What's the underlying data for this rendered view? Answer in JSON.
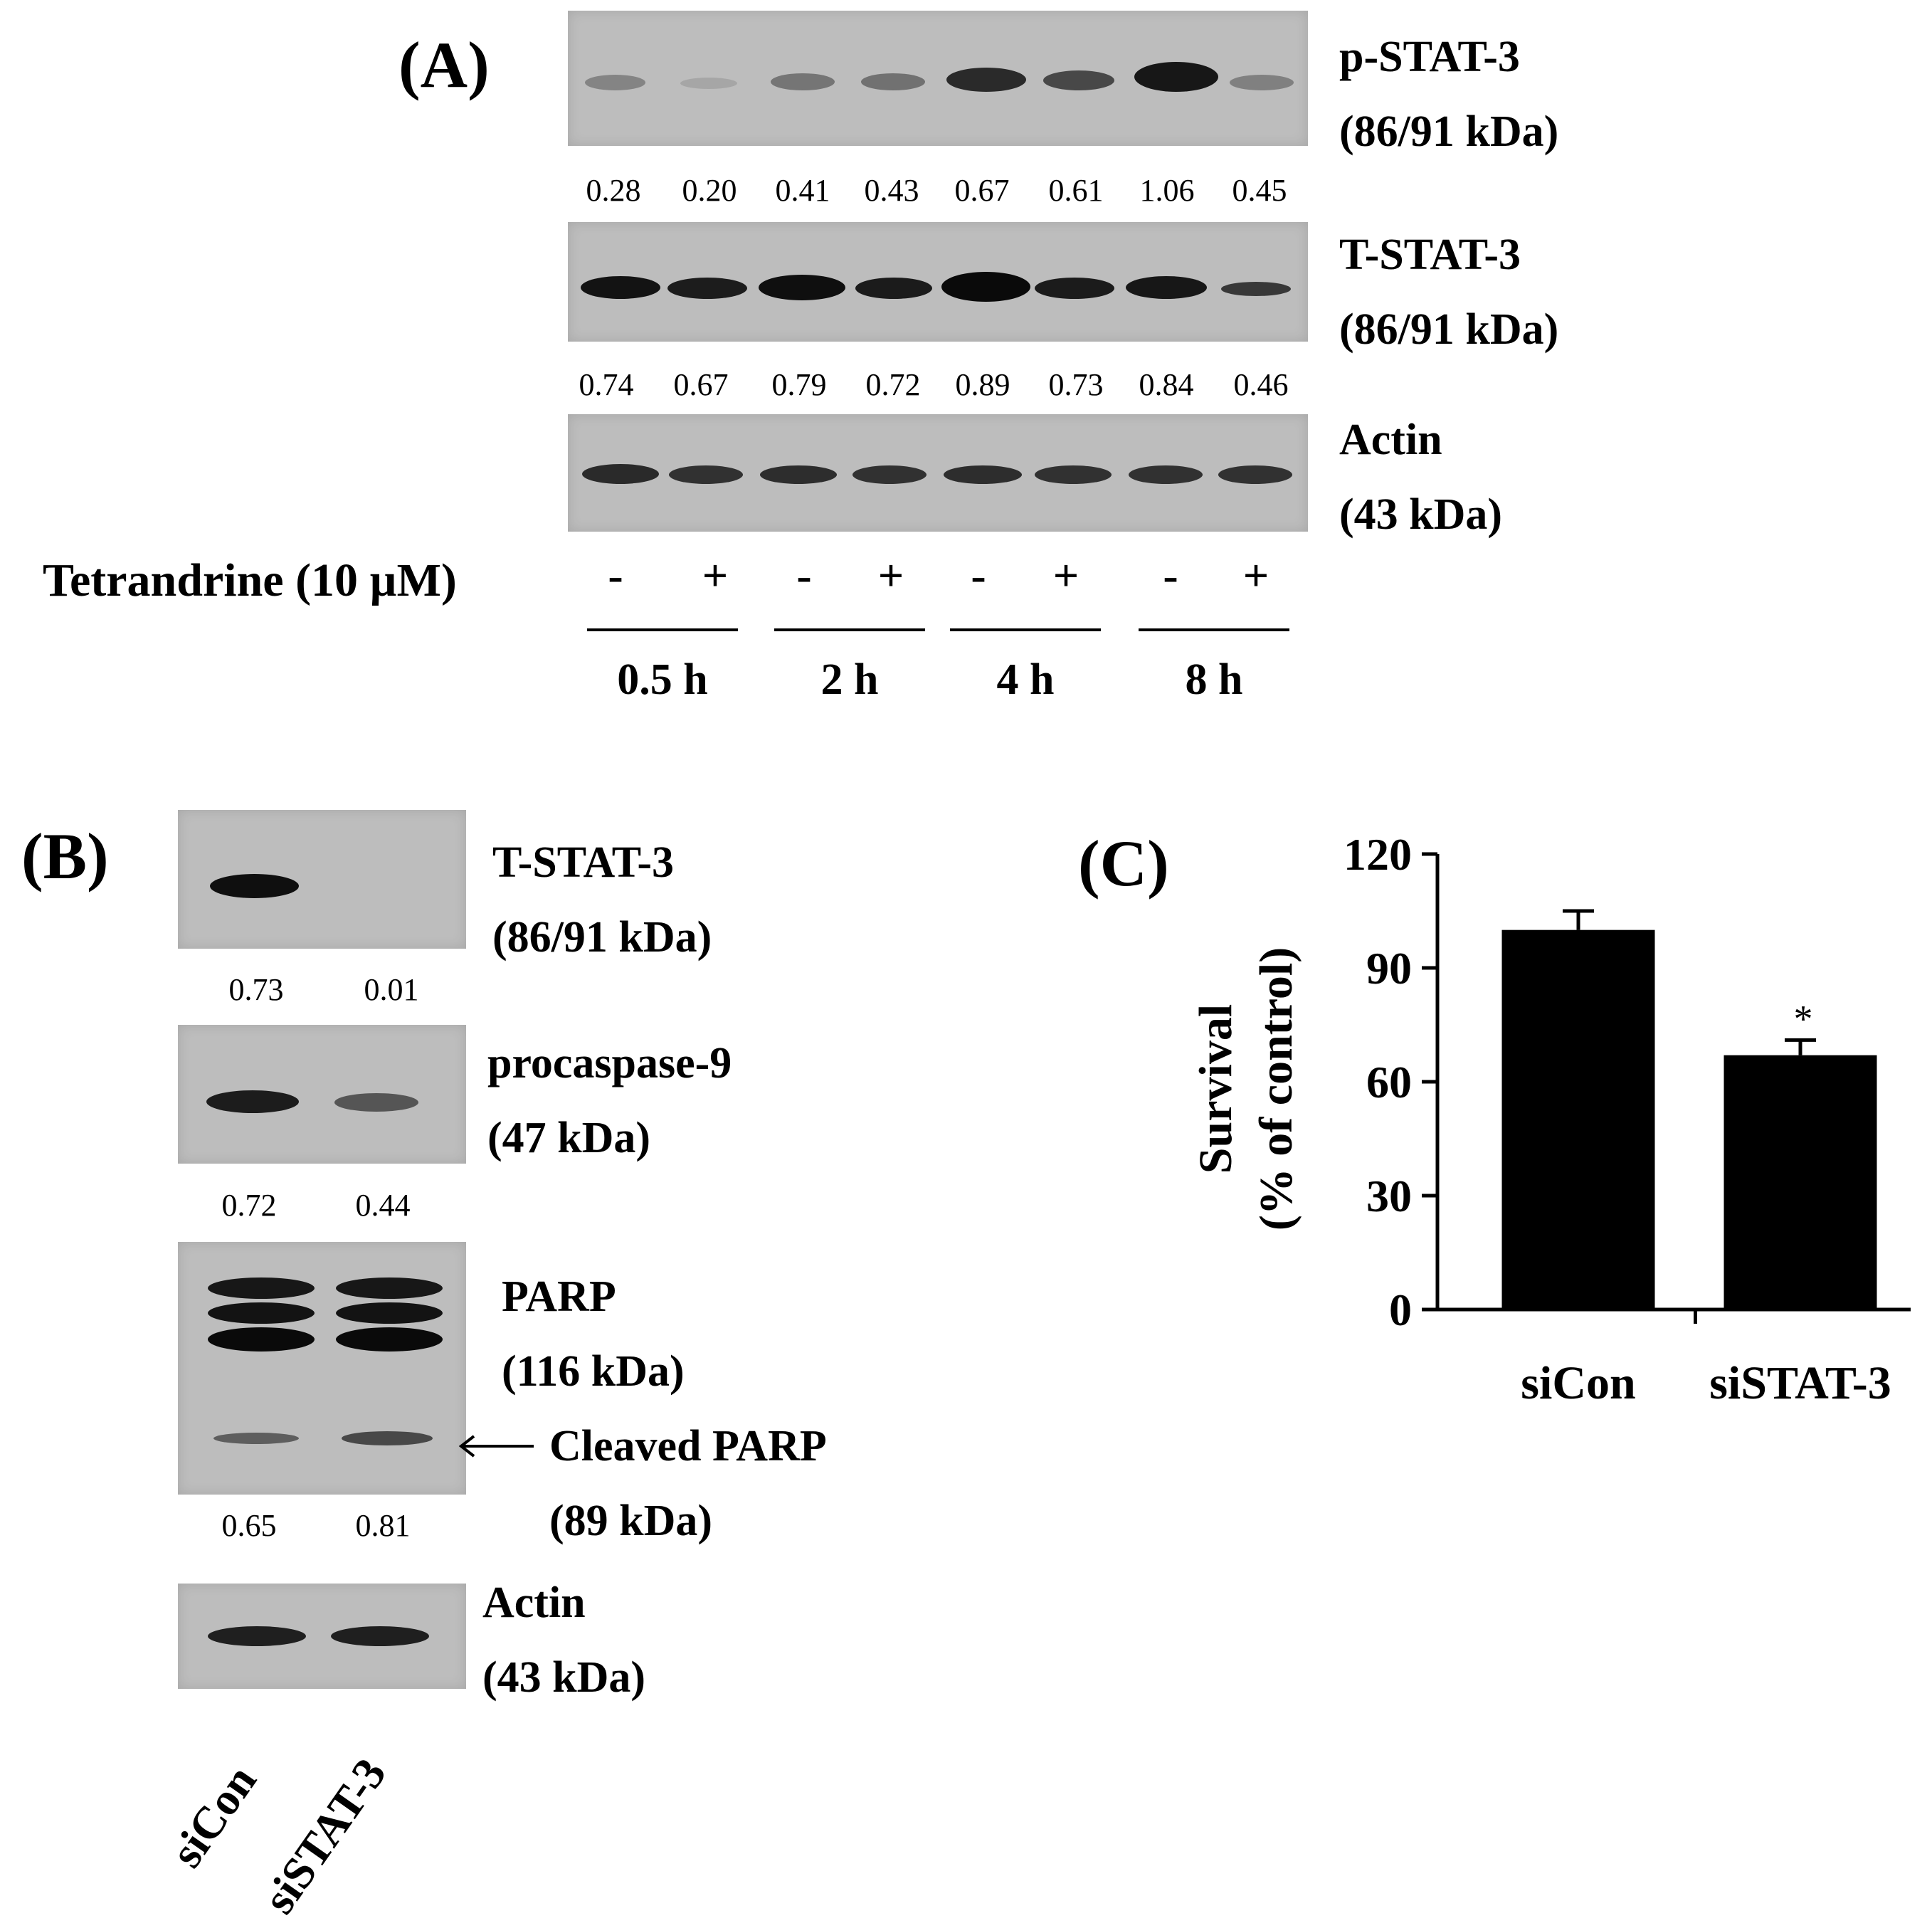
{
  "panel_a": {
    "letter": "(A)",
    "blots": [
      {
        "name": "p-STAT-3",
        "kda": "(86/91 kDa)",
        "quant": [
          "0.28",
          "0.20",
          "0.41",
          "0.43",
          "0.67",
          "0.61",
          "1.06",
          "0.45"
        ]
      },
      {
        "name": "T-STAT-3",
        "kda": "(86/91 kDa)",
        "quant": [
          "0.74",
          "0.67",
          "0.79",
          "0.72",
          "0.89",
          "0.73",
          "0.84",
          "0.46"
        ]
      },
      {
        "name": "Actin",
        "kda": "(43 kDa)"
      }
    ],
    "treatment_label": "Tetrandrine (10 µM)",
    "treatment_signs": [
      "-",
      "+",
      "-",
      "+",
      "-",
      "+",
      "-",
      "+"
    ],
    "time_points": [
      "0.5 h",
      "2 h",
      "4 h",
      "8 h"
    ]
  },
  "panel_b": {
    "letter": "(B)",
    "blots": [
      {
        "name": "T-STAT-3",
        "kda": "(86/91 kDa)",
        "quant": [
          "0.73",
          "0.01"
        ]
      },
      {
        "name": "procaspase-9",
        "kda": "(47 kDa)",
        "quant": [
          "0.72",
          "0.44"
        ]
      },
      {
        "name": "PARP",
        "kda": "(116 kDa)",
        "sub_name": "Cleaved PARP",
        "sub_kda": "(89 kDa)",
        "quant": [
          "0.65",
          "0.81"
        ]
      },
      {
        "name": "Actin",
        "kda": "(43 kDa)"
      }
    ],
    "lanes": [
      "siCon",
      "siSTAT-3"
    ]
  },
  "panel_c": {
    "letter": "(C)",
    "significance_marker": "*",
    "chart_data": {
      "type": "bar",
      "categories": [
        "siCon",
        "siSTAT-3"
      ],
      "values": [
        100,
        67
      ],
      "errors": [
        5,
        4
      ],
      "ylabel_line1": "Survival",
      "ylabel_line2": "(% of control)",
      "ylim": [
        0,
        120
      ],
      "yticks": [
        0,
        30,
        60,
        90,
        120
      ],
      "bar_color": "#000000"
    }
  }
}
